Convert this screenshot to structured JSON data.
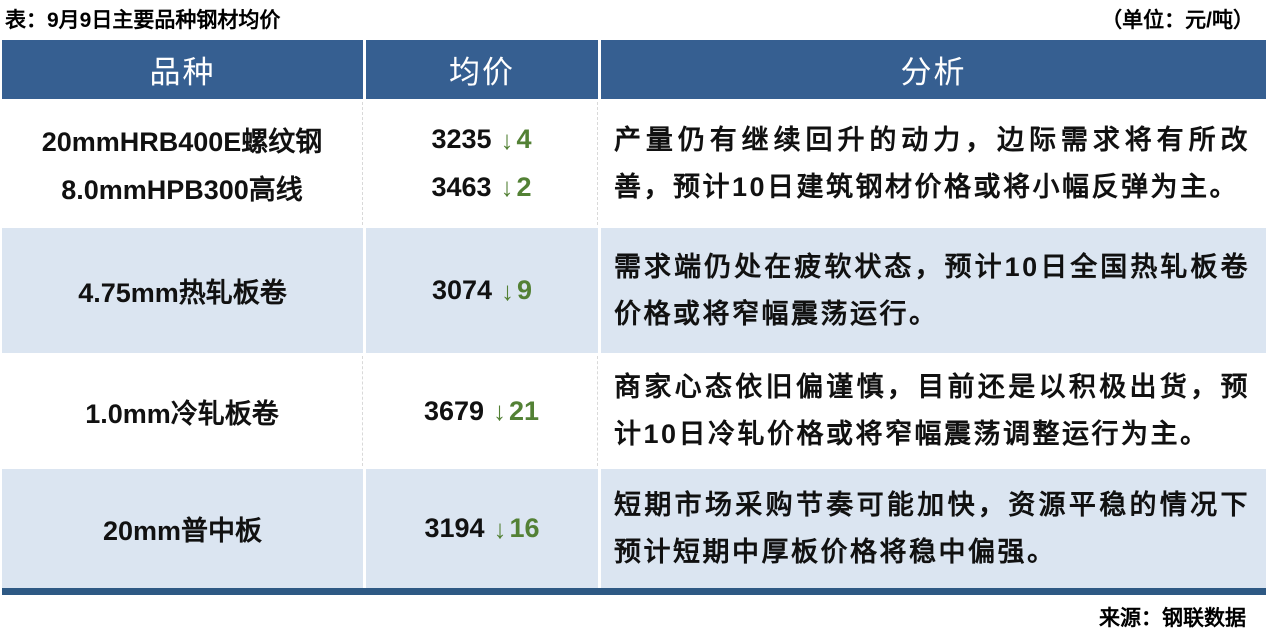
{
  "title": "表：9月9日主要品种钢材均价",
  "unit_note": "（单位：元/吨）",
  "source_note": "来源：钢联数据",
  "colors": {
    "header_bg": "#365f91",
    "alt_row_bg": "#dbe5f1",
    "down_green": "#538135",
    "bottom_rule": "#2e5984"
  },
  "chart_data": {
    "type": "table",
    "title": "9月9日主要品种钢材均价",
    "unit": "元/吨",
    "source": "钢联数据",
    "columns": [
      "品种",
      "均价",
      "分析"
    ],
    "rows": [
      {
        "items": [
          {
            "variety": "20mmHRB400E螺纹钢",
            "price": 3235,
            "direction": "down",
            "arrow": "↓",
            "change": 4
          },
          {
            "variety": "8.0mmHPB300高线",
            "price": 3463,
            "direction": "down",
            "arrow": "↓",
            "change": 2
          }
        ],
        "analysis": "产量仍有继续回升的动力，边际需求将有所改善，预计10日建筑钢材价格或将小幅反弹为主。"
      },
      {
        "items": [
          {
            "variety": "4.75mm热轧板卷",
            "price": 3074,
            "direction": "down",
            "arrow": "↓",
            "change": 9
          }
        ],
        "analysis": "需求端仍处在疲软状态，预计10日全国热轧板卷价格或将窄幅震荡运行。"
      },
      {
        "items": [
          {
            "variety": "1.0mm冷轧板卷",
            "price": 3679,
            "direction": "down",
            "arrow": "↓",
            "change": 21
          }
        ],
        "analysis": "商家心态依旧偏谨慎，目前还是以积极出货，预计10日冷轧价格或将窄幅震荡调整运行为主。"
      },
      {
        "items": [
          {
            "variety": "20mm普中板",
            "price": 3194,
            "direction": "down",
            "arrow": "↓",
            "change": 16
          }
        ],
        "analysis": "短期市场采购节奏可能加快，资源平稳的情况下预计短期中厚板价格将稳中偏强。"
      }
    ]
  }
}
